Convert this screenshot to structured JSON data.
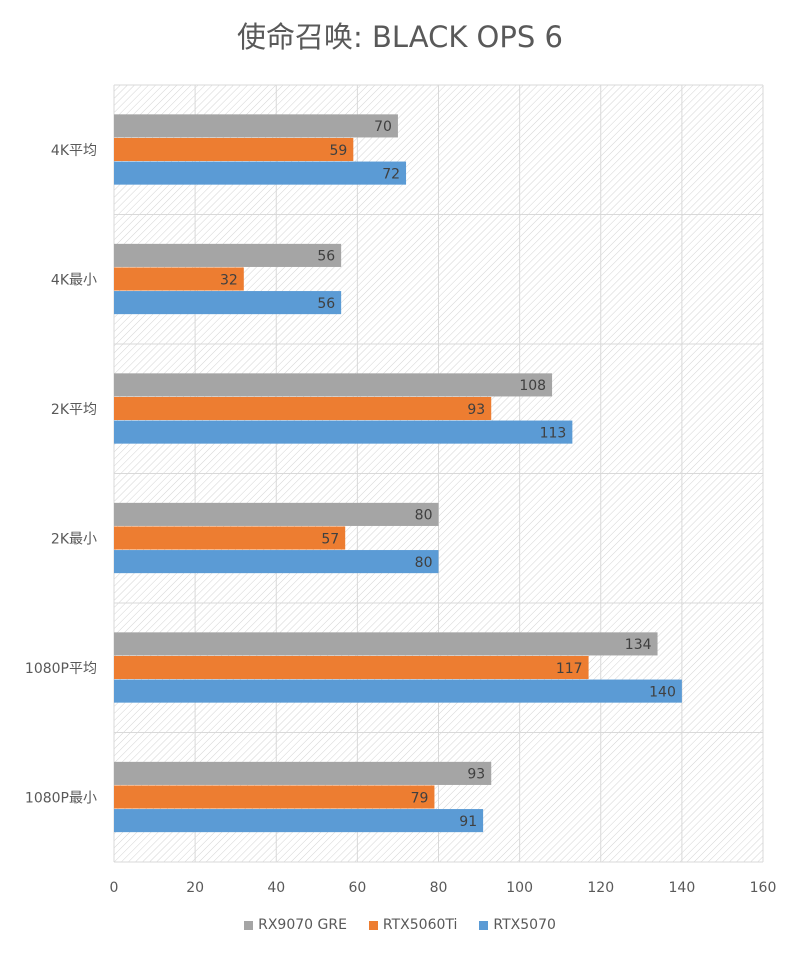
{
  "chart_data": {
    "type": "bar",
    "orientation": "horizontal",
    "title": "使命召唤: BLACK OPS 6",
    "categories": [
      "4K平均",
      "4K最小",
      "2K平均",
      "2K最小",
      "1080P平均",
      "1080P最小"
    ],
    "series": [
      {
        "name": "RX9070 GRE",
        "color": "#a5a5a5",
        "values": [
          70,
          56,
          108,
          80,
          134,
          93
        ]
      },
      {
        "name": "RTX5060Ti",
        "color": "#ed7d31",
        "values": [
          59,
          32,
          93,
          57,
          117,
          79
        ]
      },
      {
        "name": "RTX5070",
        "color": "#5b9bd5",
        "values": [
          72,
          56,
          113,
          80,
          140,
          91
        ]
      }
    ],
    "xlim": [
      0,
      160
    ],
    "xticks": [
      "0",
      "20",
      "40",
      "60",
      "80",
      "100",
      "120",
      "140",
      "160"
    ],
    "grid": true,
    "legend": "bottom",
    "data_labels": true
  }
}
